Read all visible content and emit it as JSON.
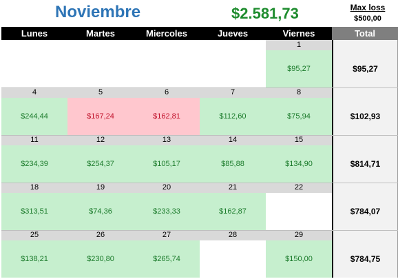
{
  "title": {
    "month": "Noviembre",
    "total": "$2.581,73",
    "max_loss_label": "Max loss",
    "max_loss_value": "$500,00"
  },
  "header": [
    "Lunes",
    "Martes",
    "Miercoles",
    "Jueves",
    "Viernes",
    "Total"
  ],
  "weeks": [
    {
      "days": [
        {
          "num": "",
          "value": ""
        },
        {
          "num": "",
          "value": ""
        },
        {
          "num": "",
          "value": ""
        },
        {
          "num": "",
          "value": ""
        },
        {
          "num": "1",
          "value": "$95,27",
          "status": "pos"
        }
      ],
      "total": "$95,27"
    },
    {
      "days": [
        {
          "num": "4",
          "value": "$244,44",
          "status": "pos"
        },
        {
          "num": "5",
          "value": "$167,24",
          "status": "neg"
        },
        {
          "num": "6",
          "value": "$162,81",
          "status": "neg"
        },
        {
          "num": "7",
          "value": "$112,60",
          "status": "pos"
        },
        {
          "num": "8",
          "value": "$75,94",
          "status": "pos"
        }
      ],
      "total": "$102,93"
    },
    {
      "days": [
        {
          "num": "11",
          "value": "$234,39",
          "status": "pos"
        },
        {
          "num": "12",
          "value": "$254,37",
          "status": "pos"
        },
        {
          "num": "13",
          "value": "$105,17",
          "status": "pos"
        },
        {
          "num": "14",
          "value": "$85,88",
          "status": "pos"
        },
        {
          "num": "15",
          "value": "$134,90",
          "status": "pos"
        }
      ],
      "total": "$814,71"
    },
    {
      "days": [
        {
          "num": "18",
          "value": "$313,51",
          "status": "pos"
        },
        {
          "num": "19",
          "value": "$74,36",
          "status": "pos"
        },
        {
          "num": "20",
          "value": "$233,33",
          "status": "pos"
        },
        {
          "num": "21",
          "value": "$162,87",
          "status": "pos"
        },
        {
          "num": "22",
          "value": "",
          "status": "empty"
        }
      ],
      "total": "$784,07"
    },
    {
      "days": [
        {
          "num": "25",
          "value": "$138,21",
          "status": "pos"
        },
        {
          "num": "26",
          "value": "$230,80",
          "status": "pos"
        },
        {
          "num": "27",
          "value": "$265,74",
          "status": "pos"
        },
        {
          "num": "28",
          "value": "",
          "status": "empty"
        },
        {
          "num": "29",
          "value": "$150,00",
          "status": "pos"
        }
      ],
      "total": "$784,75"
    }
  ]
}
